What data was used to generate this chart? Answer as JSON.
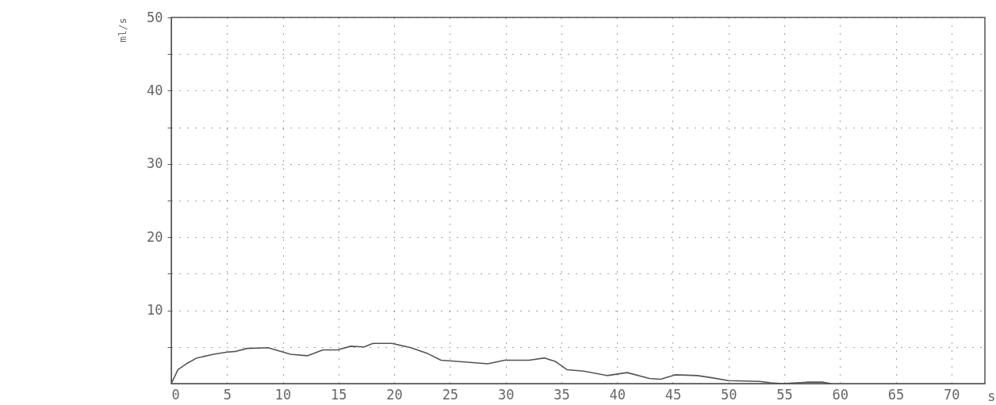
{
  "chart_data": {
    "type": "line",
    "xlabel": "s",
    "ylabel": "ml/s",
    "xlim": [
      0,
      73
    ],
    "ylim": [
      0,
      50
    ],
    "xticks": [
      0,
      5,
      10,
      15,
      20,
      25,
      30,
      35,
      40,
      45,
      50,
      55,
      60,
      65,
      70
    ],
    "yticks": [
      {
        "value": 5,
        "label": null
      },
      10,
      {
        "value": 15,
        "label": null
      },
      20,
      {
        "value": 25,
        "label": null
      },
      30,
      {
        "value": 35,
        "label": null
      },
      40,
      {
        "value": 45,
        "label": null
      },
      50
    ],
    "grid": true,
    "line_style": "solid",
    "series": [
      {
        "color": "#555555",
        "x": [
          0,
          0.6,
          1.35,
          2.3,
          3.8,
          5.0,
          5.8,
          6.8,
          8.7,
          10.7,
          12.2,
          13.6,
          14.9,
          16.1,
          17.3,
          18.1,
          19.8,
          21.5,
          23.0,
          24.2,
          25.9,
          28.4,
          29.9,
          32.1,
          33.5,
          34.5,
          35.5,
          37.0,
          39.1,
          40.9,
          42.9,
          43.9,
          45.2,
          47.2,
          48.5,
          50.0,
          52.8,
          53.8,
          54.8,
          57.1,
          58.4,
          59.2
        ],
        "values": [
          0,
          1.9,
          2.7,
          3.5,
          4.0,
          4.3,
          4.4,
          4.8,
          4.9,
          4.0,
          3.8,
          4.6,
          4.6,
          5.1,
          5.0,
          5.5,
          5.5,
          4.9,
          4.1,
          3.2,
          3.0,
          2.7,
          3.2,
          3.2,
          3.5,
          3.0,
          1.9,
          1.7,
          1.1,
          1.5,
          0.7,
          0.6,
          1.2,
          1.1,
          0.8,
          0.4,
          0.3,
          0.1,
          0,
          0.2,
          0.2,
          0
        ]
      }
    ]
  }
}
